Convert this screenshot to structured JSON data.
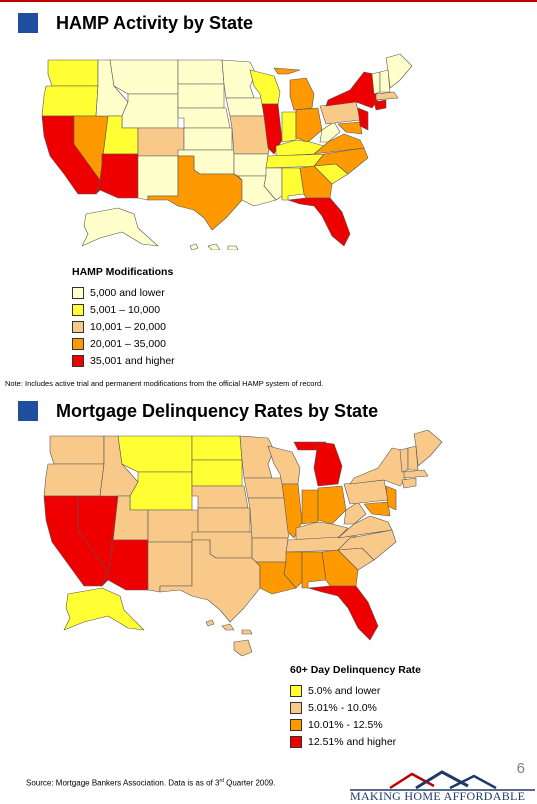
{
  "section1": {
    "title": "HAMP Activity by State",
    "legend_title": "HAMP Modifications",
    "legend": [
      {
        "label": "5,000 and lower",
        "color": "#ffffcc"
      },
      {
        "label": "5,001 – 10,000",
        "color": "#ffff33"
      },
      {
        "label": "10,001 – 20,000",
        "color": "#f9c98a"
      },
      {
        "label": "20,001 – 35,000",
        "color": "#ff9900"
      },
      {
        "label": "35,001 and higher",
        "color": "#ee0000"
      }
    ],
    "note": "Note: Includes active trial and permanent modifications from the official HAMP system of record."
  },
  "section2": {
    "title": "Mortgage Delinquency Rates by State",
    "legend_title": "60+ Day Delinquency Rate",
    "legend": [
      {
        "label": "5.0% and lower",
        "color": "#ffff33"
      },
      {
        "label": "5.01% - 10.0%",
        "color": "#f9c98a"
      },
      {
        "label": "10.01% - 12.5%",
        "color": "#ff9900"
      },
      {
        "label": "12.51% and higher",
        "color": "#ee0000"
      }
    ]
  },
  "source_main": "Source: Mortgage Bankers Association. Data is as of 3",
  "source_sup": "rd",
  "source_end": " Quarter 2009.",
  "page_number": "6",
  "brand": "MAKING HOME AFFORDABLE",
  "colors": {
    "accent_rule": "#c00000",
    "section_square": "#1f4e9e",
    "state_border": "#444444"
  }
}
